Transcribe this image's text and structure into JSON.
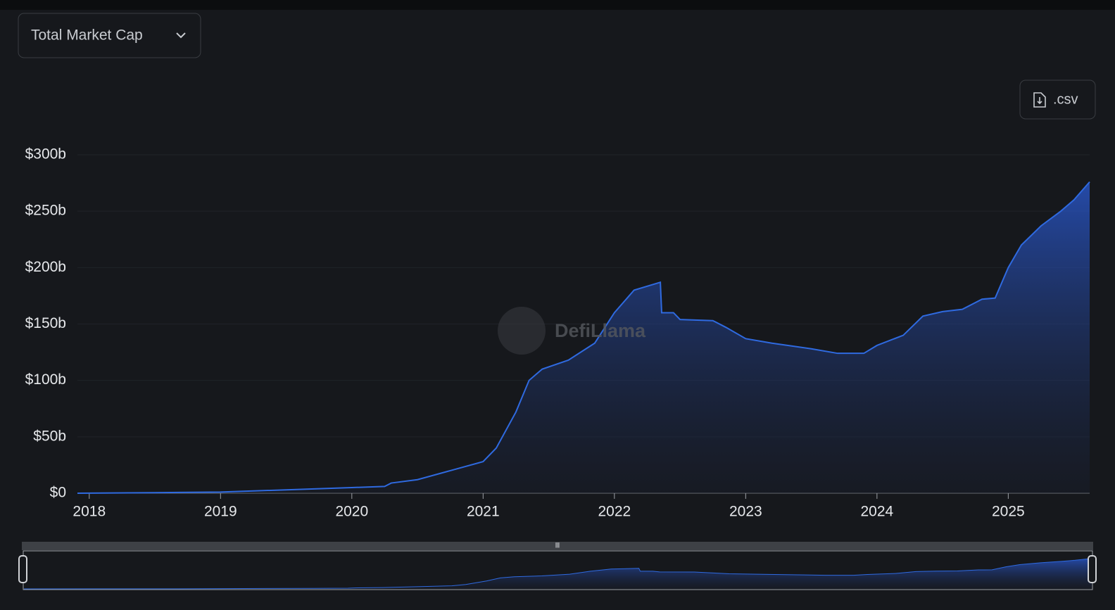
{
  "controls": {
    "dropdown": "Total Market Cap",
    "export_button": ".csv",
    "watermark": "DefiLlama"
  },
  "chart_data": {
    "type": "area",
    "x": [
      2017.91,
      2018.5,
      2019.0,
      2019.5,
      2020.0,
      2020.25,
      2020.3,
      2020.5,
      2020.75,
      2021.0,
      2021.1,
      2021.25,
      2021.35,
      2021.45,
      2021.65,
      2021.85,
      2022.0,
      2022.15,
      2022.35,
      2022.36,
      2022.45,
      2022.5,
      2022.75,
      2022.85,
      2023.0,
      2023.2,
      2023.5,
      2023.7,
      2023.9,
      2024.0,
      2024.2,
      2024.35,
      2024.5,
      2024.65,
      2024.8,
      2024.9,
      2025.0,
      2025.1,
      2025.25,
      2025.4,
      2025.5,
      2025.62
    ],
    "series": [
      {
        "name": "Total Market Cap",
        "color": "#2f6ae0",
        "values": [
          0,
          0.5,
          1,
          3,
          5,
          6,
          9,
          12,
          20,
          28,
          40,
          72,
          100,
          110,
          118,
          133,
          160,
          180,
          187,
          160,
          160,
          154,
          153,
          147,
          137,
          133,
          128,
          124,
          124,
          131,
          140,
          157,
          161,
          163,
          172,
          173,
          200,
          220,
          237,
          250,
          260,
          276
        ]
      }
    ],
    "xlim": [
      2017.91,
      2025.62
    ],
    "xticks": [
      2018,
      2019,
      2020,
      2021,
      2022,
      2023,
      2024,
      2025
    ],
    "ylim": [
      0,
      300
    ],
    "yticks": [
      {
        "value": 0,
        "label": "$0"
      },
      {
        "value": 50,
        "label": "$50b"
      },
      {
        "value": 100,
        "label": "$100b"
      },
      {
        "value": 150,
        "label": "$150b"
      },
      {
        "value": 200,
        "label": "$200b"
      },
      {
        "value": 250,
        "label": "$250b"
      },
      {
        "value": 300,
        "label": "$300b"
      }
    ],
    "grid": true
  }
}
